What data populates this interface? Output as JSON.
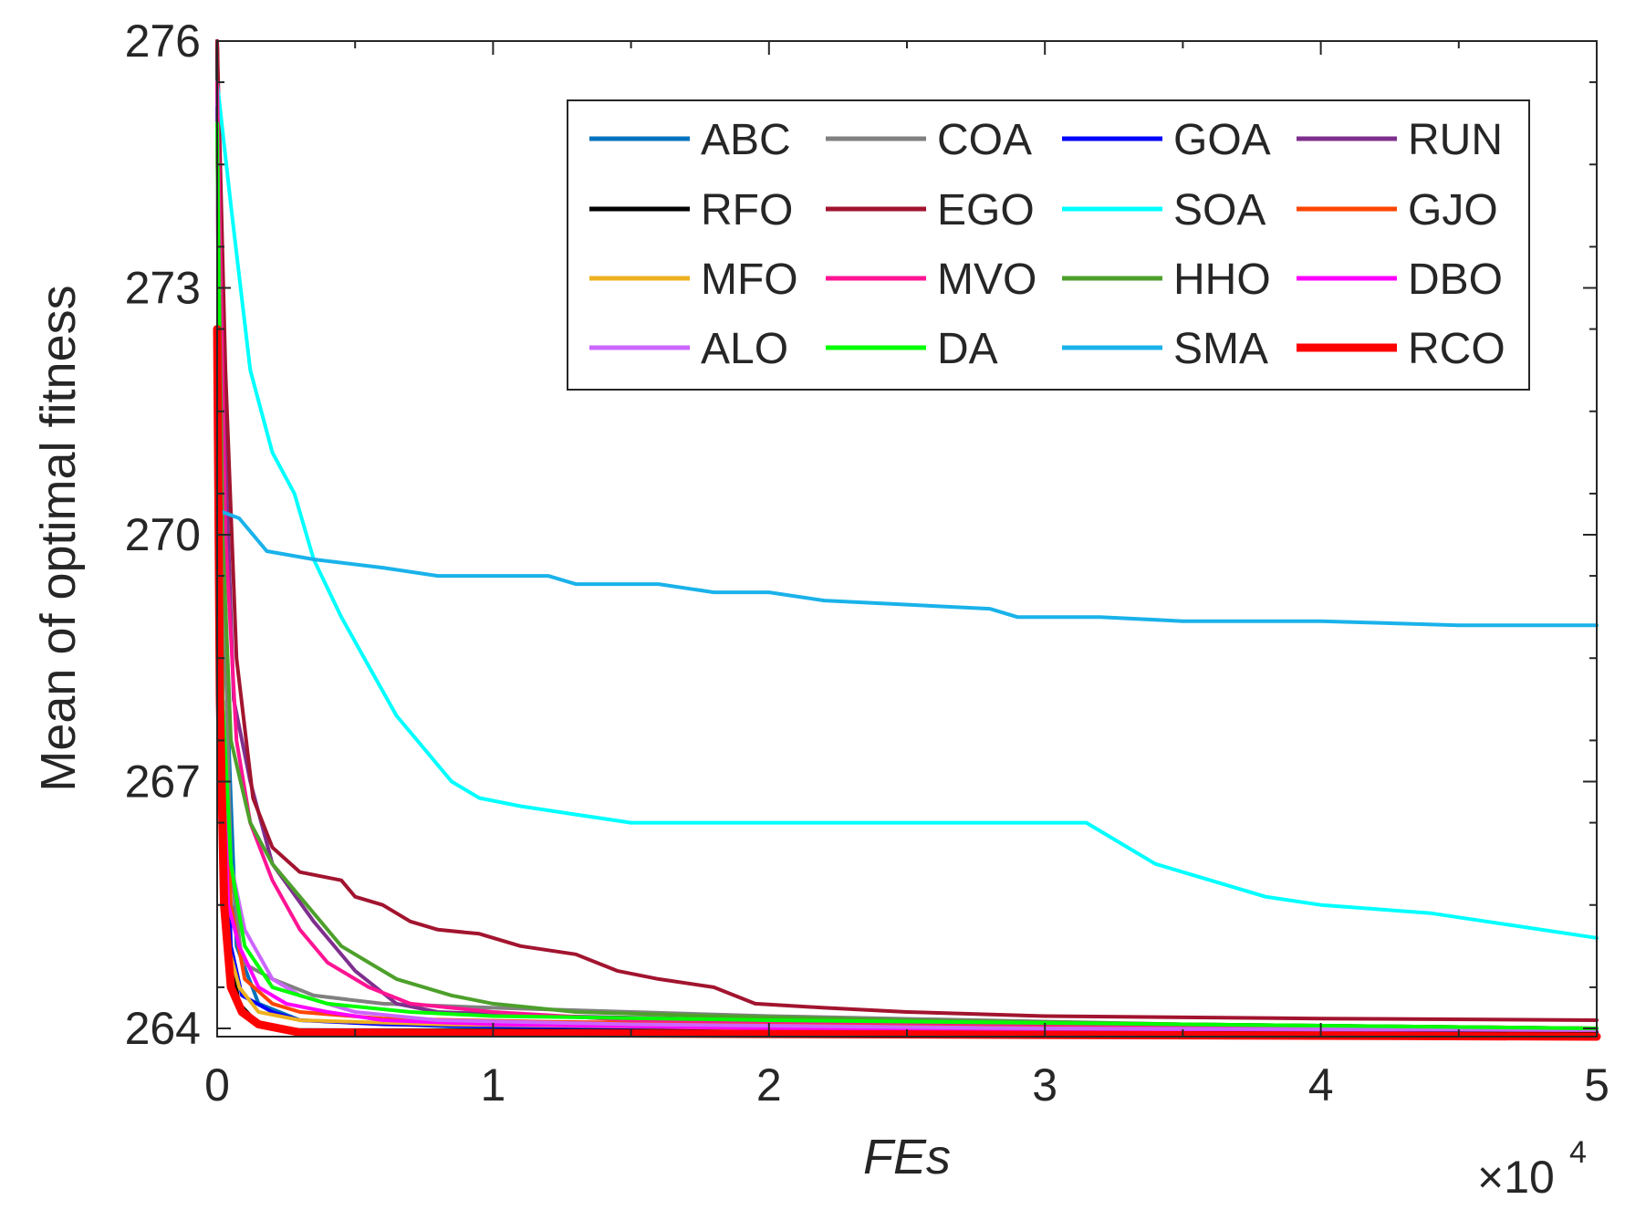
{
  "chart_data": {
    "type": "line",
    "xlabel": "FEs",
    "ylabel": "Mean of optimal fitness",
    "x_multiplier": {
      "base": "×10",
      "exponent": "4"
    },
    "xlim": [
      0,
      50000
    ],
    "ylim": [
      263.9,
      276
    ],
    "x_ticks": [
      0,
      10000,
      20000,
      30000,
      40000,
      50000
    ],
    "x_tick_labels": [
      "0",
      "1",
      "2",
      "3",
      "4",
      "5"
    ],
    "y_ticks": [
      264,
      267,
      270,
      273,
      276
    ],
    "y_tick_labels": [
      "264",
      "267",
      "270",
      "273",
      "276"
    ],
    "legend_location": "top-right",
    "series": [
      {
        "name": "ABC",
        "color": "#0072BD",
        "points": [
          [
            0,
            275.2
          ],
          [
            300,
            268.5
          ],
          [
            700,
            265.0
          ],
          [
            1500,
            264.3
          ],
          [
            3000,
            264.1
          ],
          [
            10000,
            264.0
          ],
          [
            30000,
            263.98
          ],
          [
            50000,
            263.97
          ]
        ]
      },
      {
        "name": "COA",
        "color": "#808080",
        "points": [
          [
            0,
            276
          ],
          [
            200,
            270.0
          ],
          [
            500,
            266.0
          ],
          [
            900,
            264.8
          ],
          [
            2000,
            264.6
          ],
          [
            3500,
            264.4
          ],
          [
            6000,
            264.3
          ],
          [
            10000,
            264.25
          ],
          [
            20000,
            264.15
          ],
          [
            35000,
            264.05
          ],
          [
            50000,
            264.0
          ]
        ]
      },
      {
        "name": "GOA",
        "color": "#0000FF",
        "points": [
          [
            0,
            275.5
          ],
          [
            200,
            268.0
          ],
          [
            500,
            265.0
          ],
          [
            900,
            264.4
          ],
          [
            2000,
            264.2
          ],
          [
            3000,
            264.1
          ],
          [
            6000,
            264.05
          ],
          [
            14000,
            264.0
          ],
          [
            50000,
            263.95
          ]
        ]
      },
      {
        "name": "RUN",
        "color": "#7E2F8E",
        "points": [
          [
            0,
            276
          ],
          [
            200,
            272.0
          ],
          [
            600,
            268.0
          ],
          [
            1200,
            267.0
          ],
          [
            2000,
            266.0
          ],
          [
            3500,
            265.3
          ],
          [
            5000,
            264.7
          ],
          [
            6500,
            264.3
          ],
          [
            8000,
            264.2
          ],
          [
            12000,
            264.15
          ],
          [
            20000,
            264.1
          ],
          [
            50000,
            264.0
          ]
        ]
      },
      {
        "name": "RFO",
        "color": "#000000",
        "points": [
          [
            0,
            276
          ],
          [
            150,
            268.0
          ],
          [
            400,
            265.0
          ],
          [
            800,
            264.3
          ],
          [
            1500,
            264.05
          ],
          [
            3000,
            263.98
          ],
          [
            50000,
            263.95
          ]
        ]
      },
      {
        "name": "EGO",
        "color": "#A2142F",
        "points": [
          [
            0,
            276
          ],
          [
            300,
            272.0
          ],
          [
            700,
            268.5
          ],
          [
            1300,
            266.8
          ],
          [
            2000,
            266.2
          ],
          [
            3000,
            265.9
          ],
          [
            4500,
            265.8
          ],
          [
            5000,
            265.6
          ],
          [
            6000,
            265.5
          ],
          [
            7000,
            265.3
          ],
          [
            8000,
            265.2
          ],
          [
            9500,
            265.15
          ],
          [
            11000,
            265.0
          ],
          [
            13000,
            264.9
          ],
          [
            14500,
            264.7
          ],
          [
            16000,
            264.6
          ],
          [
            18000,
            264.5
          ],
          [
            19500,
            264.3
          ],
          [
            22000,
            264.25
          ],
          [
            25000,
            264.2
          ],
          [
            30000,
            264.15
          ],
          [
            40000,
            264.12
          ],
          [
            50000,
            264.1
          ]
        ]
      },
      {
        "name": "SOA",
        "color": "#00FFFF",
        "points": [
          [
            0,
            275.5
          ],
          [
            500,
            274.0
          ],
          [
            1200,
            272.0
          ],
          [
            2000,
            271.0
          ],
          [
            2800,
            270.5
          ],
          [
            3500,
            269.7
          ],
          [
            4500,
            269.0
          ],
          [
            5500,
            268.4
          ],
          [
            6500,
            267.8
          ],
          [
            7500,
            267.4
          ],
          [
            8500,
            267.0
          ],
          [
            9500,
            266.8
          ],
          [
            11000,
            266.7
          ],
          [
            13000,
            266.6
          ],
          [
            15000,
            266.5
          ],
          [
            20000,
            266.5
          ],
          [
            25000,
            266.5
          ],
          [
            31500,
            266.5
          ],
          [
            32500,
            266.3
          ],
          [
            34000,
            266.0
          ],
          [
            36000,
            265.8
          ],
          [
            38000,
            265.6
          ],
          [
            40000,
            265.5
          ],
          [
            44000,
            265.4
          ],
          [
            50000,
            265.1
          ]
        ]
      },
      {
        "name": "GJO",
        "color": "#FF4500",
        "points": [
          [
            0,
            275.0
          ],
          [
            200,
            268.0
          ],
          [
            500,
            265.5
          ],
          [
            1000,
            264.6
          ],
          [
            2000,
            264.3
          ],
          [
            3000,
            264.2
          ],
          [
            6000,
            264.12
          ],
          [
            12000,
            264.08
          ],
          [
            30000,
            264.02
          ],
          [
            50000,
            264.0
          ]
        ]
      },
      {
        "name": "MFO",
        "color": "#EDB120",
        "points": [
          [
            0,
            275.0
          ],
          [
            150,
            268.0
          ],
          [
            400,
            265.0
          ],
          [
            800,
            264.5
          ],
          [
            1500,
            264.2
          ],
          [
            3000,
            264.1
          ],
          [
            8000,
            264.05
          ],
          [
            20000,
            264.0
          ],
          [
            50000,
            263.98
          ]
        ]
      },
      {
        "name": "MVO",
        "color": "#FF1493",
        "points": [
          [
            0,
            275.5
          ],
          [
            300,
            270.0
          ],
          [
            700,
            267.5
          ],
          [
            1200,
            266.5
          ],
          [
            2000,
            265.8
          ],
          [
            3000,
            265.2
          ],
          [
            4000,
            264.8
          ],
          [
            5500,
            264.5
          ],
          [
            7000,
            264.3
          ],
          [
            10000,
            264.2
          ],
          [
            15000,
            264.1
          ],
          [
            30000,
            264.05
          ],
          [
            50000,
            264.0
          ]
        ]
      },
      {
        "name": "HHO",
        "color": "#4DA02B",
        "points": [
          [
            0,
            275.0
          ],
          [
            200,
            270.0
          ],
          [
            500,
            267.5
          ],
          [
            1200,
            266.5
          ],
          [
            2000,
            266.0
          ],
          [
            3000,
            265.6
          ],
          [
            4500,
            265.0
          ],
          [
            5500,
            264.8
          ],
          [
            6500,
            264.6
          ],
          [
            8500,
            264.4
          ],
          [
            10000,
            264.3
          ],
          [
            13000,
            264.2
          ],
          [
            18000,
            264.15
          ],
          [
            25000,
            264.1
          ],
          [
            35000,
            264.05
          ],
          [
            50000,
            264.0
          ]
        ]
      },
      {
        "name": "DBO",
        "color": "#FF00FF",
        "points": [
          [
            0,
            275.0
          ],
          [
            150,
            268.0
          ],
          [
            400,
            265.5
          ],
          [
            800,
            265.0
          ],
          [
            1500,
            264.5
          ],
          [
            2500,
            264.3
          ],
          [
            4000,
            264.2
          ],
          [
            6000,
            264.1
          ],
          [
            10000,
            264.05
          ],
          [
            20000,
            264.0
          ],
          [
            50000,
            263.98
          ]
        ]
      },
      {
        "name": "ALO",
        "color": "#CC66FF",
        "points": [
          [
            0,
            275.0
          ],
          [
            200,
            268.0
          ],
          [
            500,
            266.0
          ],
          [
            1000,
            265.2
          ],
          [
            2000,
            264.6
          ],
          [
            3000,
            264.4
          ],
          [
            5000,
            264.2
          ],
          [
            8000,
            264.1
          ],
          [
            15000,
            264.05
          ],
          [
            30000,
            264.0
          ],
          [
            50000,
            263.98
          ]
        ]
      },
      {
        "name": "DA",
        "color": "#00FF00",
        "points": [
          [
            0,
            275.0
          ],
          [
            200,
            268.0
          ],
          [
            500,
            266.0
          ],
          [
            1000,
            265.0
          ],
          [
            2000,
            264.5
          ],
          [
            4000,
            264.3
          ],
          [
            7000,
            264.2
          ],
          [
            10000,
            264.15
          ],
          [
            20000,
            264.1
          ],
          [
            35000,
            264.05
          ],
          [
            50000,
            264.0
          ]
        ]
      },
      {
        "name": "SMA",
        "color": "#1AB2EA",
        "points": [
          [
            0,
            270.3
          ],
          [
            800,
            270.2
          ],
          [
            1800,
            269.8
          ],
          [
            3500,
            269.7
          ],
          [
            6000,
            269.6
          ],
          [
            8000,
            269.5
          ],
          [
            12000,
            269.5
          ],
          [
            13000,
            269.4
          ],
          [
            16000,
            269.4
          ],
          [
            18000,
            269.3
          ],
          [
            20000,
            269.3
          ],
          [
            22000,
            269.2
          ],
          [
            28000,
            269.1
          ],
          [
            29000,
            269.0
          ],
          [
            32000,
            269.0
          ],
          [
            35000,
            268.95
          ],
          [
            40000,
            268.95
          ],
          [
            45000,
            268.9
          ],
          [
            50000,
            268.9
          ]
        ]
      },
      {
        "name": "RCO",
        "color": "#FF0000",
        "points": [
          [
            0,
            272.5
          ],
          [
            100,
            268.0
          ],
          [
            250,
            265.5
          ],
          [
            500,
            264.5
          ],
          [
            900,
            264.2
          ],
          [
            1500,
            264.05
          ],
          [
            3000,
            263.95
          ],
          [
            50000,
            263.9
          ]
        ]
      }
    ]
  }
}
